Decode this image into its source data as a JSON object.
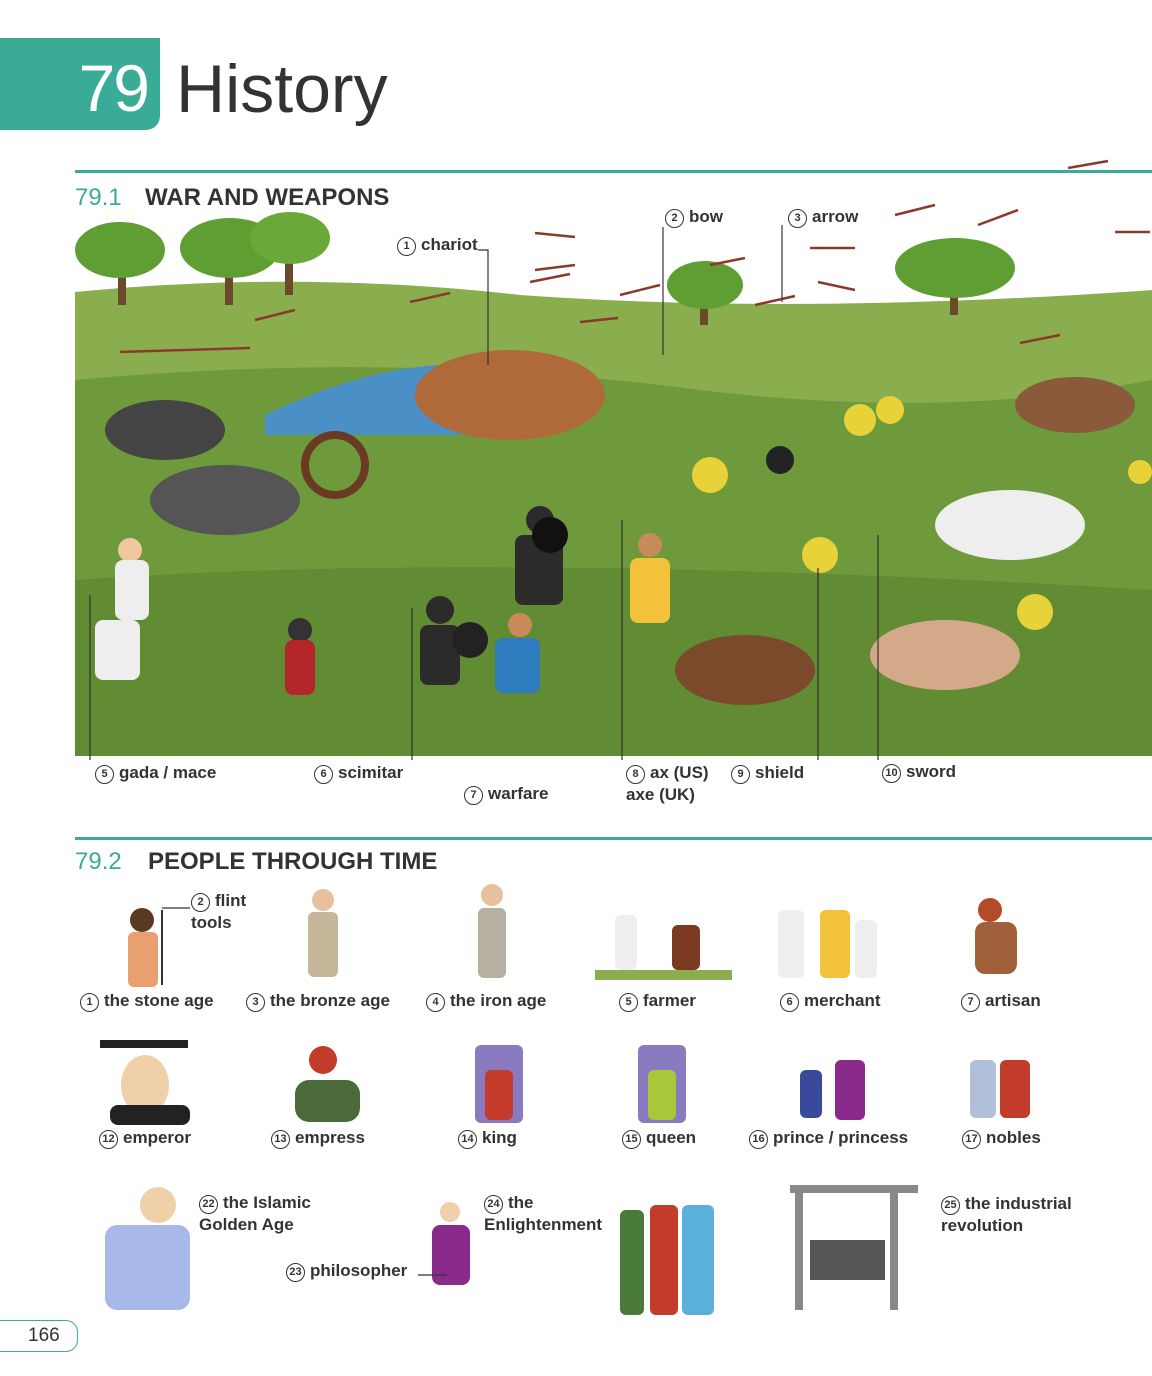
{
  "header": {
    "unit_number": "79",
    "title": "History",
    "page_number": "166"
  },
  "section1": {
    "number": "79.1",
    "title": "WAR AND WEAPONS",
    "labels": [
      {
        "n": "1",
        "text": "chariot"
      },
      {
        "n": "2",
        "text": "bow"
      },
      {
        "n": "3",
        "text": "arrow"
      },
      {
        "n": "5",
        "text": "gada / mace"
      },
      {
        "n": "6",
        "text": "scimitar"
      },
      {
        "n": "7",
        "text": "warfare"
      },
      {
        "n": "8",
        "text": "ax (US)",
        "text2": "axe (UK)"
      },
      {
        "n": "9",
        "text": "shield"
      },
      {
        "n": "10",
        "text": "sword"
      }
    ]
  },
  "section2": {
    "number": "79.2",
    "title": "PEOPLE THROUGH TIME",
    "items": [
      {
        "n": "1",
        "text": "the stone age"
      },
      {
        "n": "2",
        "text": "flint",
        "text2": "tools"
      },
      {
        "n": "3",
        "text": "the bronze age"
      },
      {
        "n": "4",
        "text": "the iron age"
      },
      {
        "n": "5",
        "text": "farmer"
      },
      {
        "n": "6",
        "text": "merchant"
      },
      {
        "n": "7",
        "text": "artisan"
      },
      {
        "n": "12",
        "text": "emperor"
      },
      {
        "n": "13",
        "text": "empress"
      },
      {
        "n": "14",
        "text": "king"
      },
      {
        "n": "15",
        "text": "queen"
      },
      {
        "n": "16",
        "text": "prince / princess"
      },
      {
        "n": "17",
        "text": "nobles"
      },
      {
        "n": "22",
        "text": "the Islamic",
        "text2": "Golden Age"
      },
      {
        "n": "23",
        "text": "philosopher"
      },
      {
        "n": "24",
        "text": "the",
        "text2": "Enlightenment"
      },
      {
        "n": "25",
        "text": "the industrial",
        "text2": "revolution"
      }
    ]
  },
  "colors": {
    "accent": "#3aab97",
    "grass": "#6e9a3c",
    "sky": "#ffffff"
  }
}
